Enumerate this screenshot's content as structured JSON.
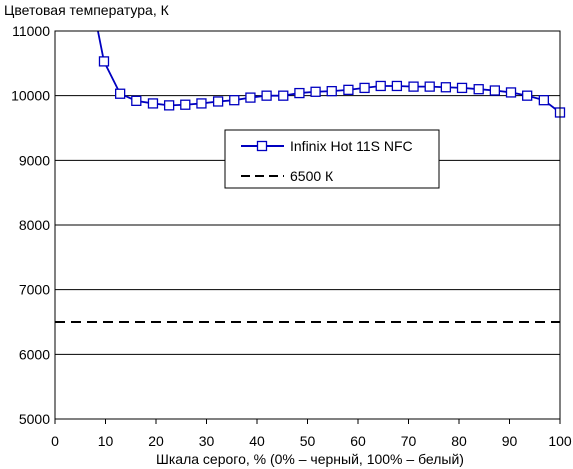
{
  "chart_data": {
    "type": "line",
    "ylabel": "Цветовая температура, К",
    "xlabel": "Шкала серого, % (0% – черный, 100% – белый)",
    "xlim": [
      0,
      100
    ],
    "ylim": [
      5000,
      11000
    ],
    "xticks": [
      0,
      10,
      20,
      30,
      40,
      50,
      60,
      70,
      80,
      90,
      100
    ],
    "yticks": [
      5000,
      6000,
      7000,
      8000,
      9000,
      10000,
      11000
    ],
    "grid": "horizontal",
    "legend_position": "center",
    "series": [
      {
        "name": "Infinix Hot 11S NFC",
        "color": "#0000c0",
        "marker": "square",
        "x": [
          9.7,
          12.9,
          16.1,
          19.4,
          22.6,
          25.8,
          29.0,
          32.3,
          35.5,
          38.7,
          41.9,
          45.2,
          48.4,
          51.6,
          54.8,
          58.1,
          61.3,
          64.5,
          67.7,
          71.0,
          74.2,
          77.4,
          80.6,
          83.9,
          87.1,
          90.3,
          93.5,
          96.8,
          100
        ],
        "y": [
          10530,
          10030,
          9920,
          9880,
          9850,
          9860,
          9880,
          9910,
          9930,
          9970,
          10000,
          10000,
          10040,
          10060,
          10070,
          10090,
          10120,
          10150,
          10150,
          10140,
          10140,
          10130,
          10120,
          10100,
          10080,
          10050,
          10000,
          9930,
          9740
        ],
        "line_start": {
          "x": 8.5,
          "y": 11000
        }
      },
      {
        "name": "6500 К",
        "color": "#000000",
        "style": "dashed",
        "x": [
          0,
          100
        ],
        "y": [
          6500,
          6500
        ]
      }
    ]
  }
}
